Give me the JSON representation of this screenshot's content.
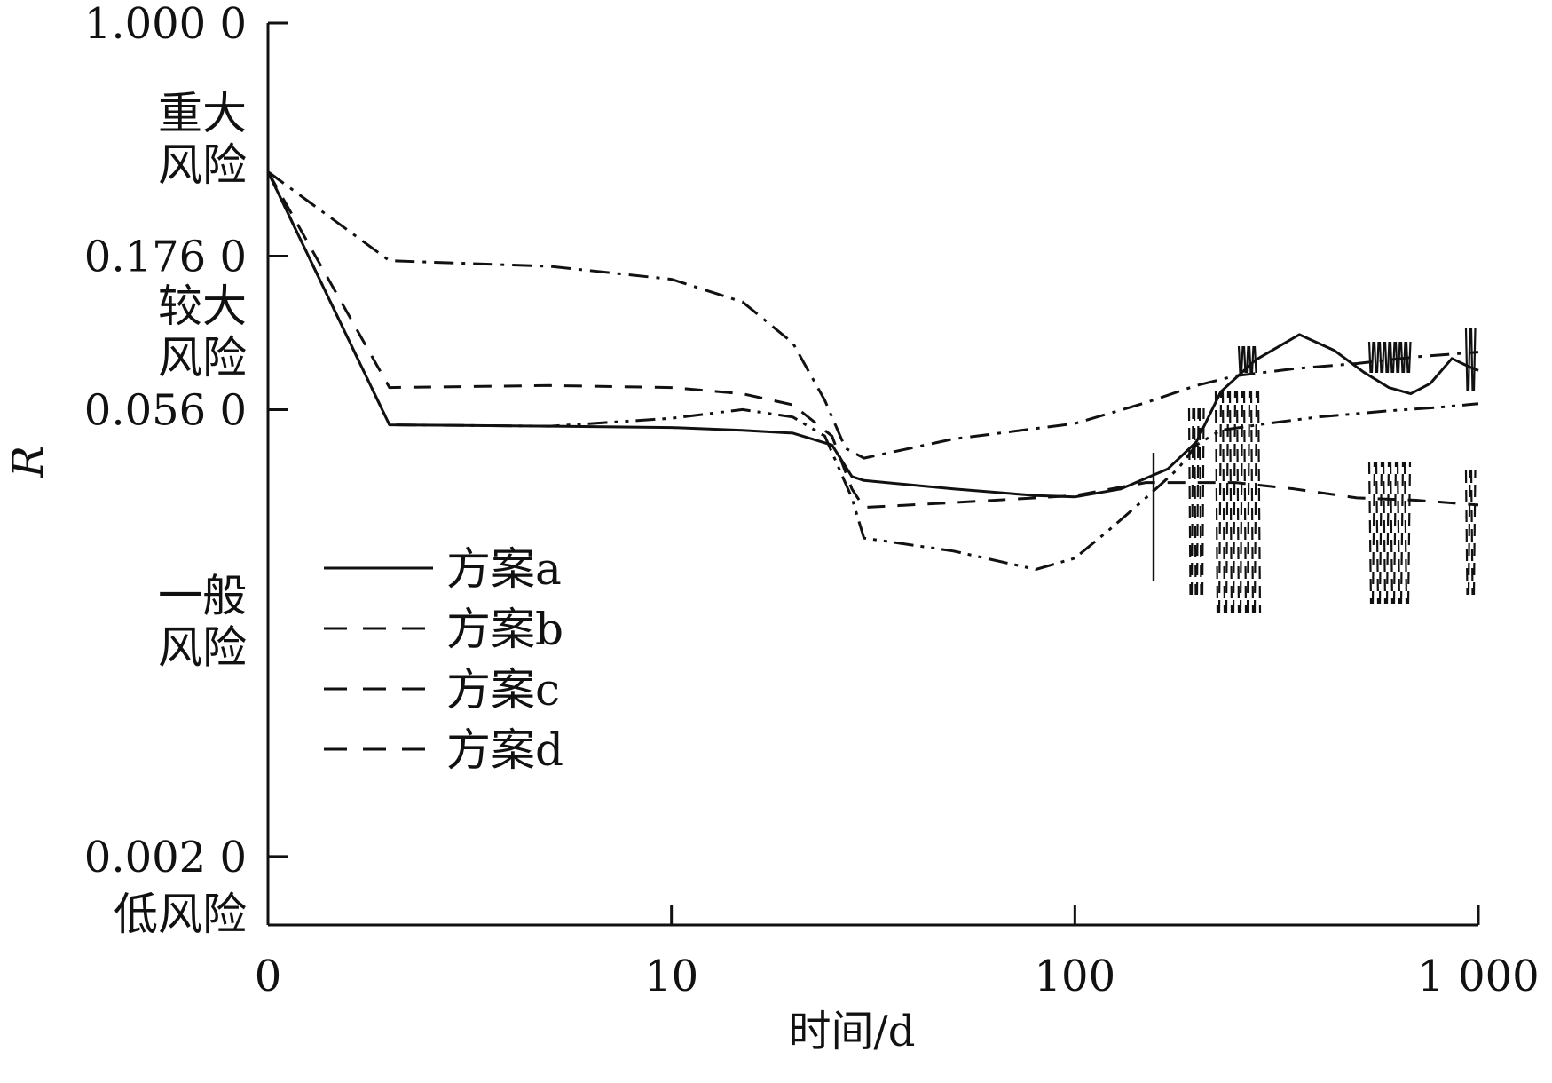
{
  "chart_data": {
    "type": "line",
    "title": "",
    "xlabel": "时间/d",
    "ylabel": "R",
    "x_scale": "log",
    "x_ticks": [
      {
        "value": 1,
        "label": "0"
      },
      {
        "value": 10,
        "label": "10"
      },
      {
        "value": 100,
        "label": "100"
      },
      {
        "value": 1000,
        "label": "1 000"
      }
    ],
    "y_scale": "log",
    "ylim": [
      0.0012,
      1.0
    ],
    "y_ticks": [
      {
        "value": 1.0,
        "label": "1.000 0"
      },
      {
        "value": 0.176,
        "label": "0.176 0"
      },
      {
        "value": 0.056,
        "label": "0.056 0"
      },
      {
        "value": 0.002,
        "label": "0.002 0"
      }
    ],
    "risk_zones": [
      {
        "lines": [
          "重大",
          "风险"
        ],
        "value": 0.42
      },
      {
        "lines": [
          "较大",
          "风险"
        ],
        "value": 0.1
      },
      {
        "lines": [
          "一般",
          "风险"
        ],
        "value": 0.0115
      },
      {
        "lines": [
          "低风险"
        ],
        "value": 0.0013
      }
    ],
    "legend": {
      "position": "center-left"
    },
    "series": [
      {
        "name": "方案a",
        "dash": "solid",
        "points": [
          [
            1,
            0.33
          ],
          [
            2,
            0.05
          ],
          [
            5,
            0.0495
          ],
          [
            10,
            0.049
          ],
          [
            15,
            0.048
          ],
          [
            20,
            0.047
          ],
          [
            25,
            0.043
          ],
          [
            28,
            0.034
          ],
          [
            30,
            0.033
          ],
          [
            50,
            0.031
          ],
          [
            80,
            0.0295
          ],
          [
            100,
            0.0292
          ],
          [
            130,
            0.031
          ],
          [
            170,
            0.036
          ],
          [
            200,
            0.044
          ],
          [
            230,
            0.064
          ],
          [
            280,
            0.081
          ],
          [
            360,
            0.098
          ],
          [
            440,
            0.087
          ],
          [
            520,
            0.074
          ],
          [
            600,
            0.066
          ],
          [
            680,
            0.063
          ],
          [
            760,
            0.068
          ],
          [
            860,
            0.082
          ],
          [
            950,
            0.077
          ],
          [
            1000,
            0.075
          ]
        ]
      },
      {
        "name": "方案b",
        "dash": "dash",
        "points": [
          [
            1,
            0.33
          ],
          [
            2,
            0.066
          ],
          [
            5,
            0.067
          ],
          [
            10,
            0.066
          ],
          [
            15,
            0.063
          ],
          [
            20,
            0.058
          ],
          [
            25,
            0.046
          ],
          [
            28,
            0.031
          ],
          [
            30,
            0.027
          ],
          [
            50,
            0.028
          ],
          [
            100,
            0.0295
          ],
          [
            150,
            0.0325
          ],
          [
            200,
            0.0325
          ],
          [
            250,
            0.0325
          ],
          [
            350,
            0.031
          ],
          [
            500,
            0.029
          ],
          [
            700,
            0.0285
          ],
          [
            1000,
            0.0275
          ]
        ]
      },
      {
        "name": "方案c",
        "dash": "dashdot",
        "points": [
          [
            1,
            0.33
          ],
          [
            2,
            0.17
          ],
          [
            5,
            0.163
          ],
          [
            10,
            0.148
          ],
          [
            15,
            0.125
          ],
          [
            20,
            0.092
          ],
          [
            24,
            0.06
          ],
          [
            27,
            0.042
          ],
          [
            30,
            0.039
          ],
          [
            50,
            0.045
          ],
          [
            100,
            0.0505
          ],
          [
            150,
            0.059
          ],
          [
            200,
            0.067
          ],
          [
            250,
            0.072
          ],
          [
            350,
            0.076
          ],
          [
            500,
            0.079
          ],
          [
            700,
            0.083
          ],
          [
            1000,
            0.086
          ]
        ]
      },
      {
        "name": "方案d",
        "dash": "dashdotdot",
        "points": [
          [
            1,
            0.33
          ],
          [
            2,
            0.05
          ],
          [
            5,
            0.0495
          ],
          [
            10,
            0.0525
          ],
          [
            15,
            0.056
          ],
          [
            20,
            0.053
          ],
          [
            24,
            0.046
          ],
          [
            28,
            0.029
          ],
          [
            30,
            0.0215
          ],
          [
            50,
            0.0195
          ],
          [
            80,
            0.017
          ],
          [
            100,
            0.0185
          ],
          [
            120,
            0.0225
          ],
          [
            150,
            0.029
          ],
          [
            180,
            0.036
          ],
          [
            200,
            0.043
          ],
          [
            230,
            0.048
          ],
          [
            300,
            0.0505
          ],
          [
            400,
            0.053
          ],
          [
            600,
            0.0555
          ],
          [
            800,
            0.057
          ],
          [
            1000,
            0.0585
          ]
        ]
      }
    ]
  }
}
